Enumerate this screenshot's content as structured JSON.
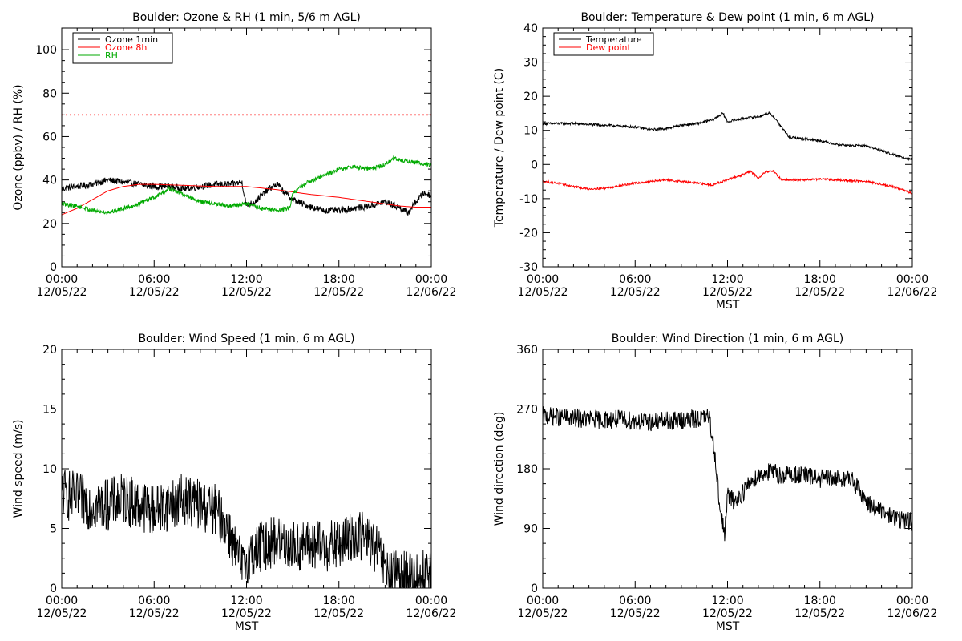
{
  "chart_data": [
    {
      "type": "line",
      "title": "Boulder: Ozone & RH (1 min, 5/6 m AGL)",
      "xlabel": "",
      "ylabel": "Ozone (ppbv) / RH (%)",
      "x_unit": "hours",
      "xlim": [
        0,
        24
      ],
      "ylim": [
        0,
        110
      ],
      "yticks": [
        0,
        20,
        40,
        60,
        80,
        100
      ],
      "xtick_labels": [
        [
          "00:00",
          "12/05/22"
        ],
        [
          "06:00",
          "12/05/22"
        ],
        [
          "12:00",
          "12/05/22"
        ],
        [
          "18:00",
          "12/05/22"
        ],
        [
          "00:00",
          "12/06/22"
        ]
      ],
      "legend": "top-left",
      "hlines": [
        {
          "y": 70,
          "color": "#ff0000",
          "style": "dotted"
        }
      ],
      "series": [
        {
          "name": "Ozone 1min",
          "color": "#000000",
          "noise": 1.5,
          "x": [
            0,
            1,
            2,
            3,
            4,
            5,
            6,
            7,
            8,
            9,
            10,
            11,
            11.7,
            12,
            12.5,
            13,
            13.5,
            14,
            14.5,
            15,
            16,
            17,
            18,
            19,
            20,
            21,
            22,
            22.5,
            23,
            23.5,
            24
          ],
          "y": [
            36,
            37,
            38,
            40,
            39,
            38,
            37,
            37,
            36,
            37,
            38,
            38,
            39,
            28,
            30,
            33,
            36,
            38,
            34,
            31,
            28,
            26,
            26,
            27,
            28,
            30,
            27,
            25,
            30,
            34,
            33
          ]
        },
        {
          "name": "Ozone 8h",
          "color": "#ff0000",
          "noise": 0,
          "x": [
            0,
            1,
            2,
            3,
            4,
            5,
            6,
            8,
            10,
            12,
            14,
            16,
            18,
            20,
            22,
            23,
            24
          ],
          "y": [
            24,
            27,
            31,
            35,
            37,
            38,
            38,
            37.5,
            37,
            37,
            35.5,
            33.5,
            32,
            30,
            28,
            27.5,
            27.5
          ]
        },
        {
          "name": "RH",
          "color": "#00aa00",
          "noise": 1.0,
          "x": [
            0,
            1,
            2,
            3,
            4,
            5,
            6,
            7,
            8,
            9,
            10,
            11,
            12,
            13,
            14,
            14.8,
            15,
            16,
            17,
            18,
            19,
            20,
            21,
            21.5,
            22,
            23,
            24
          ],
          "y": [
            29,
            28,
            26,
            25,
            27,
            29,
            32,
            36,
            33,
            30,
            29,
            28,
            29,
            27,
            26,
            27,
            34,
            39,
            42,
            45,
            46,
            45,
            47,
            50,
            49,
            48,
            47
          ]
        }
      ]
    },
    {
      "type": "line",
      "title": "Boulder: Temperature & Dew point (1 min, 6 m AGL)",
      "xlabel": "MST",
      "ylabel": "Temperature / Dew point (C)",
      "x_unit": "hours",
      "xlim": [
        0,
        24
      ],
      "ylim": [
        -30,
        40
      ],
      "yticks": [
        -30,
        -20,
        -10,
        0,
        10,
        20,
        30,
        40
      ],
      "xtick_labels": [
        [
          "00:00",
          "12/05/22"
        ],
        [
          "06:00",
          "12/05/22"
        ],
        [
          "12:00",
          "12/05/22"
        ],
        [
          "18:00",
          "12/05/22"
        ],
        [
          "00:00",
          "12/06/22"
        ]
      ],
      "legend": "top-left",
      "series": [
        {
          "name": "Temperature",
          "color": "#000000",
          "noise": 0.35,
          "x": [
            0,
            2,
            4,
            6,
            7,
            8,
            9,
            10,
            11,
            11.7,
            12,
            12.5,
            13,
            14,
            14.7,
            15,
            15.5,
            16,
            17,
            18,
            19,
            20,
            21,
            22,
            23,
            24
          ],
          "y": [
            12,
            12,
            11.5,
            11,
            10.2,
            10.5,
            11.5,
            12,
            13,
            15,
            12.5,
            13,
            13.5,
            14,
            15,
            14,
            11,
            8,
            7.5,
            7,
            6,
            5.5,
            5.5,
            4,
            2.5,
            1.5
          ]
        },
        {
          "name": "Dew point",
          "color": "#ff0000",
          "noise": 0.3,
          "x": [
            0,
            1,
            2,
            3,
            4,
            6,
            8,
            10,
            11,
            12,
            13,
            13.5,
            14,
            14.5,
            15,
            15.5,
            16,
            17,
            18,
            19,
            20,
            21,
            22,
            23,
            24
          ],
          "y": [
            -5,
            -5.5,
            -6.5,
            -7.2,
            -7,
            -5.5,
            -4.5,
            -5.5,
            -6,
            -4.5,
            -3,
            -2,
            -4,
            -2,
            -2,
            -4.5,
            -4.5,
            -4.5,
            -4.3,
            -4.5,
            -4.8,
            -5,
            -5.8,
            -6.8,
            -8.5
          ]
        }
      ]
    },
    {
      "type": "line",
      "title": "Boulder: Wind Speed (1 min, 6 m AGL)",
      "xlabel": "MST",
      "ylabel": "Wind speed (m/s)",
      "x_unit": "hours",
      "xlim": [
        0,
        24
      ],
      "ylim": [
        0,
        20
      ],
      "yticks": [
        0,
        5,
        10,
        15,
        20
      ],
      "xtick_labels": [
        [
          "00:00",
          "12/05/22"
        ],
        [
          "06:00",
          "12/05/22"
        ],
        [
          "12:00",
          "12/05/22"
        ],
        [
          "18:00",
          "12/05/22"
        ],
        [
          "00:00",
          "12/06/22"
        ]
      ],
      "legend": "none",
      "series": [
        {
          "name": "",
          "color": "#000000",
          "noise": 2.2,
          "x": [
            0,
            1,
            2,
            3,
            4,
            5,
            6,
            7,
            8,
            9,
            10,
            10.8,
            11.3,
            11.8,
            12,
            12.5,
            13,
            14,
            15,
            16,
            17,
            18,
            19,
            20,
            20.5,
            21,
            21.5,
            22,
            23,
            24
          ],
          "y": [
            8,
            7.5,
            7,
            7,
            7.5,
            7,
            6.5,
            7,
            7.5,
            7,
            6.5,
            5,
            3,
            1.5,
            2.5,
            3,
            3.5,
            4,
            3.5,
            3.5,
            3.5,
            3.5,
            4.5,
            4,
            3,
            1.5,
            1,
            1,
            1,
            1.2
          ]
        }
      ]
    },
    {
      "type": "line",
      "title": "Boulder: Wind Direction (1 min, 6 m AGL)",
      "xlabel": "MST",
      "ylabel": "Wind direction (deg)",
      "x_unit": "hours",
      "xlim": [
        0,
        24
      ],
      "ylim": [
        0,
        360
      ],
      "yticks": [
        0,
        90,
        180,
        270,
        360
      ],
      "xtick_labels": [
        [
          "00:00",
          "12/05/22"
        ],
        [
          "06:00",
          "12/05/22"
        ],
        [
          "12:00",
          "12/05/22"
        ],
        [
          "18:00",
          "12/05/22"
        ],
        [
          "00:00",
          "12/06/22"
        ]
      ],
      "legend": "none",
      "series": [
        {
          "name": "",
          "color": "#000000",
          "noise": 14,
          "x": [
            0,
            1,
            2,
            3,
            4,
            5,
            6,
            7,
            8,
            9,
            10,
            10.8,
            11.2,
            11.5,
            11.8,
            12,
            12.5,
            13,
            13.5,
            14,
            14.5,
            15,
            15.5,
            16,
            17,
            18,
            19,
            20,
            20.5,
            21,
            22,
            23,
            24
          ],
          "y": [
            260,
            258,
            256,
            255,
            254,
            255,
            252,
            250,
            252,
            253,
            255,
            258,
            200,
            120,
            80,
            140,
            130,
            145,
            160,
            170,
            175,
            175,
            170,
            172,
            170,
            165,
            165,
            165,
            150,
            130,
            115,
            105,
            100
          ]
        }
      ]
    }
  ]
}
